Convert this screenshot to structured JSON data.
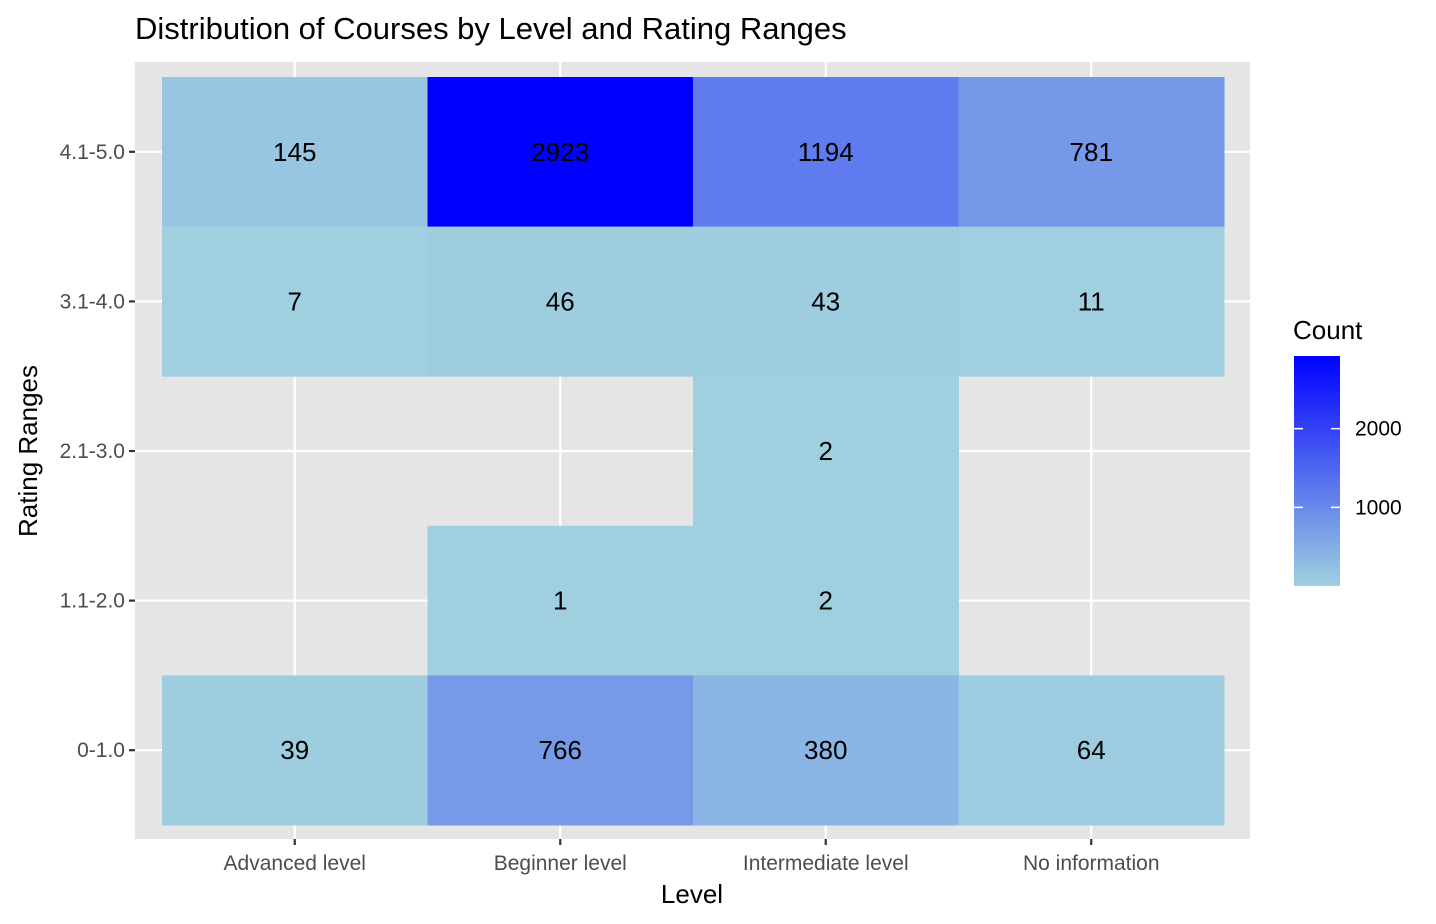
{
  "chart_data": {
    "type": "heatmap",
    "title": "Distribution of Courses by Level and Rating Ranges",
    "xlabel": "Level",
    "ylabel": "Rating Ranges",
    "x_categories": [
      "Advanced level",
      "Beginner level",
      "Intermediate level",
      "No information"
    ],
    "y_categories": [
      "0-1.0",
      "1.1-2.0",
      "2.1-3.0",
      "3.1-4.0",
      "4.1-5.0"
    ],
    "cells": [
      {
        "x": "Advanced level",
        "y": "4.1-5.0",
        "value": 145
      },
      {
        "x": "Beginner level",
        "y": "4.1-5.0",
        "value": 2923
      },
      {
        "x": "Intermediate level",
        "y": "4.1-5.0",
        "value": 1194
      },
      {
        "x": "No information",
        "y": "4.1-5.0",
        "value": 781
      },
      {
        "x": "Advanced level",
        "y": "3.1-4.0",
        "value": 7
      },
      {
        "x": "Beginner level",
        "y": "3.1-4.0",
        "value": 46
      },
      {
        "x": "Intermediate level",
        "y": "3.1-4.0",
        "value": 43
      },
      {
        "x": "No information",
        "y": "3.1-4.0",
        "value": 11
      },
      {
        "x": "Intermediate level",
        "y": "2.1-3.0",
        "value": 2
      },
      {
        "x": "Beginner level",
        "y": "1.1-2.0",
        "value": 1
      },
      {
        "x": "Intermediate level",
        "y": "1.1-2.0",
        "value": 2
      },
      {
        "x": "Advanced level",
        "y": "0-1.0",
        "value": 39
      },
      {
        "x": "Beginner level",
        "y": "0-1.0",
        "value": 766
      },
      {
        "x": "Intermediate level",
        "y": "0-1.0",
        "value": 380
      },
      {
        "x": "No information",
        "y": "0-1.0",
        "value": 64
      }
    ],
    "legend": {
      "title": "Count",
      "ticks": [
        1000,
        2000
      ],
      "range": [
        1,
        2923
      ],
      "low_color": "#a0d0e0",
      "high_color": "#0000ff",
      "placement": "right"
    },
    "panel_background": "#e5e5e5",
    "grid": true
  }
}
